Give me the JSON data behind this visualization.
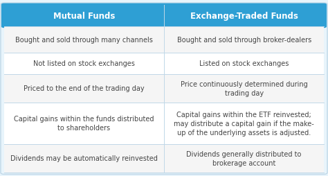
{
  "header": [
    "Mutual Funds",
    "Exchange-Traded Funds"
  ],
  "header_bg": "#2e9fd4",
  "header_text_color": "#ffffff",
  "outer_bg": "#e8f4fb",
  "row_bg_even": "#f5f5f5",
  "row_bg_odd": "#ffffff",
  "divider_color": "#c0d8e8",
  "cell_text_color": "#444444",
  "rows": [
    [
      "Bought and sold through many channels",
      "Bought and sold through broker-dealers"
    ],
    [
      "Not listed on stock exchanges",
      "Listed on stock exchanges"
    ],
    [
      "Priced to the end of the trading day",
      "Price continuously determined during\ntrading day"
    ],
    [
      "Capital gains within the funds distributed\nto shareholders",
      "Capital gains within the ETF reinvested;\nmay distribute a capital gain if the make-\nup of the underlying assets is adjusted."
    ],
    [
      "Dividends may be automatically reinvested",
      "Dividends generally distributed to\nbrokerage account"
    ]
  ],
  "header_fontsize": 8.5,
  "cell_fontsize": 7.0,
  "fig_width": 4.74,
  "fig_height": 2.55,
  "dpi": 100
}
